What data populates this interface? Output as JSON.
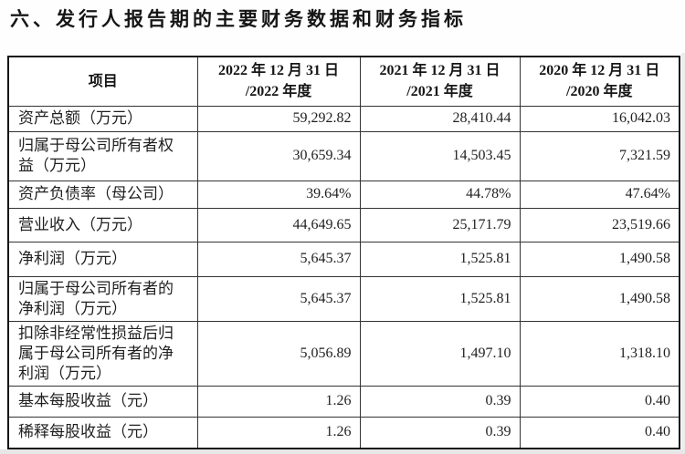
{
  "page": {
    "title": "六、发行人报告期的主要财务数据和财务指标"
  },
  "table": {
    "header": {
      "item_label": "项目",
      "columns": [
        {
          "line1": "2022 年 12 月 31 日",
          "line2": "/2022 年度"
        },
        {
          "line1": "2021 年 12 月 31 日",
          "line2": "/2021 年度"
        },
        {
          "line1": "2020 年 12 月 31 日",
          "line2": "/2020 年度"
        }
      ]
    },
    "rows": [
      {
        "label": "资产总额（万元）",
        "values": [
          "59,292.82",
          "28,410.44",
          "16,042.03"
        ]
      },
      {
        "label": "归属于母公司所有者权益（万元）",
        "values": [
          "30,659.34",
          "14,503.45",
          "7,321.59"
        ]
      },
      {
        "label": "资产负债率（母公司）",
        "values": [
          "39.64%",
          "44.78%",
          "47.64%"
        ]
      },
      {
        "label": "营业收入（万元）",
        "values": [
          "44,649.65",
          "25,171.79",
          "23,519.66"
        ]
      },
      {
        "label": "净利润（万元）",
        "values": [
          "5,645.37",
          "1,525.81",
          "1,490.58"
        ]
      },
      {
        "label": "归属于母公司所有者的净利润（万元）",
        "values": [
          "5,645.37",
          "1,525.81",
          "1,490.58"
        ]
      },
      {
        "label": "扣除非经常性损益后归属于母公司所有者的净利润（万元）",
        "values": [
          "5,056.89",
          "1,497.10",
          "1,318.10"
        ]
      },
      {
        "label": "基本每股收益（元）",
        "values": [
          "1.26",
          "0.39",
          "0.40"
        ]
      },
      {
        "label": "稀释每股收益（元）",
        "values": [
          "1.26",
          "0.39",
          "0.40"
        ]
      }
    ]
  },
  "colors": {
    "text": "#1f1f1f",
    "outer_border": "#151515",
    "inner_border": "#333333",
    "background": "#ffffff",
    "page_edge": "#e7e7e7"
  }
}
